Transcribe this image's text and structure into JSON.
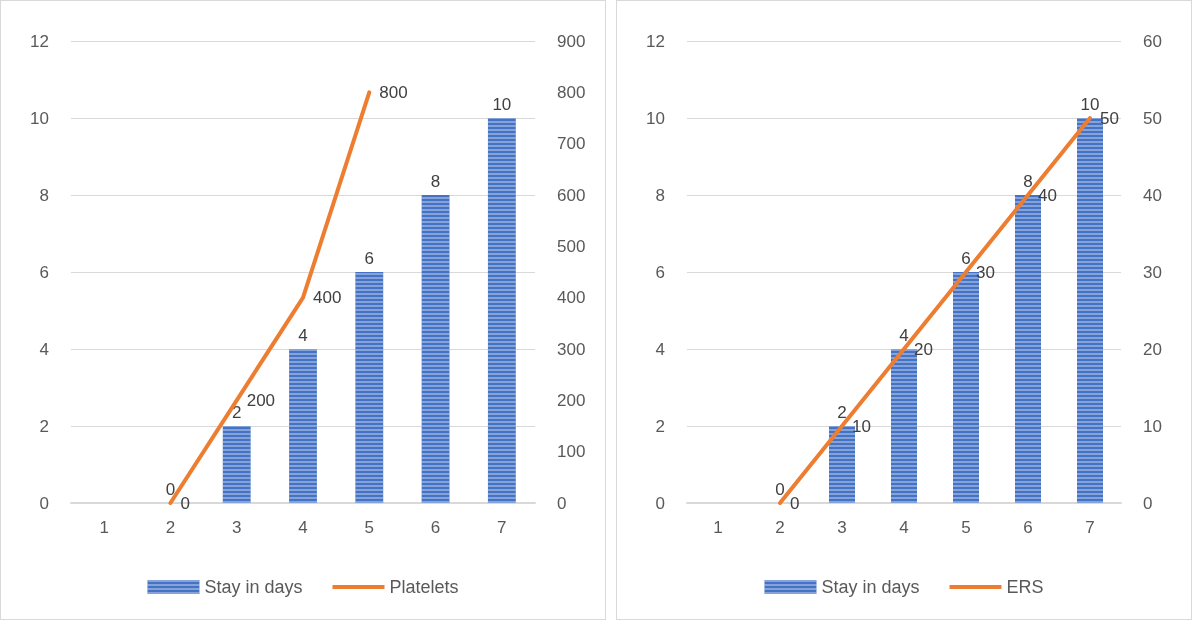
{
  "chart_data": [
    {
      "type": "bar",
      "categories": [
        "1",
        "2",
        "3",
        "4",
        "5",
        "6",
        "7"
      ],
      "series": [
        {
          "name": "Stay in days",
          "color": "#4472c4",
          "values": [
            null,
            0,
            2,
            4,
            6,
            8,
            10
          ]
        },
        {
          "name": "Platelets",
          "type": "line",
          "axis": "y2",
          "color": "#ed7d31",
          "values": [
            null,
            0,
            200,
            400,
            800,
            null,
            null
          ]
        }
      ],
      "ylim": [
        0,
        12
      ],
      "yticks": [
        0,
        2,
        4,
        6,
        8,
        10,
        12
      ],
      "y2lim": [
        0,
        900
      ],
      "y2ticks": [
        0,
        100,
        200,
        300,
        400,
        500,
        600,
        700,
        800,
        900
      ],
      "grid": "y",
      "legend": "bottom",
      "data_labels": true,
      "marker": "none",
      "line_style": "solid"
    },
    {
      "type": "bar",
      "categories": [
        "1",
        "2",
        "3",
        "4",
        "5",
        "6",
        "7"
      ],
      "series": [
        {
          "name": "Stay in days",
          "color": "#4472c4",
          "values": [
            null,
            0,
            2,
            4,
            6,
            8,
            10
          ]
        },
        {
          "name": "ERS",
          "type": "line",
          "axis": "y2",
          "color": "#ed7d31",
          "values": [
            null,
            0,
            10,
            20,
            30,
            40,
            50
          ]
        }
      ],
      "ylim": [
        0,
        12
      ],
      "yticks": [
        0,
        2,
        4,
        6,
        8,
        10,
        12
      ],
      "y2lim": [
        0,
        60
      ],
      "y2ticks": [
        0,
        10,
        20,
        30,
        40,
        50,
        60
      ],
      "grid": "y",
      "legend": "bottom",
      "data_labels": true,
      "marker": "none",
      "line_style": "solid"
    }
  ]
}
